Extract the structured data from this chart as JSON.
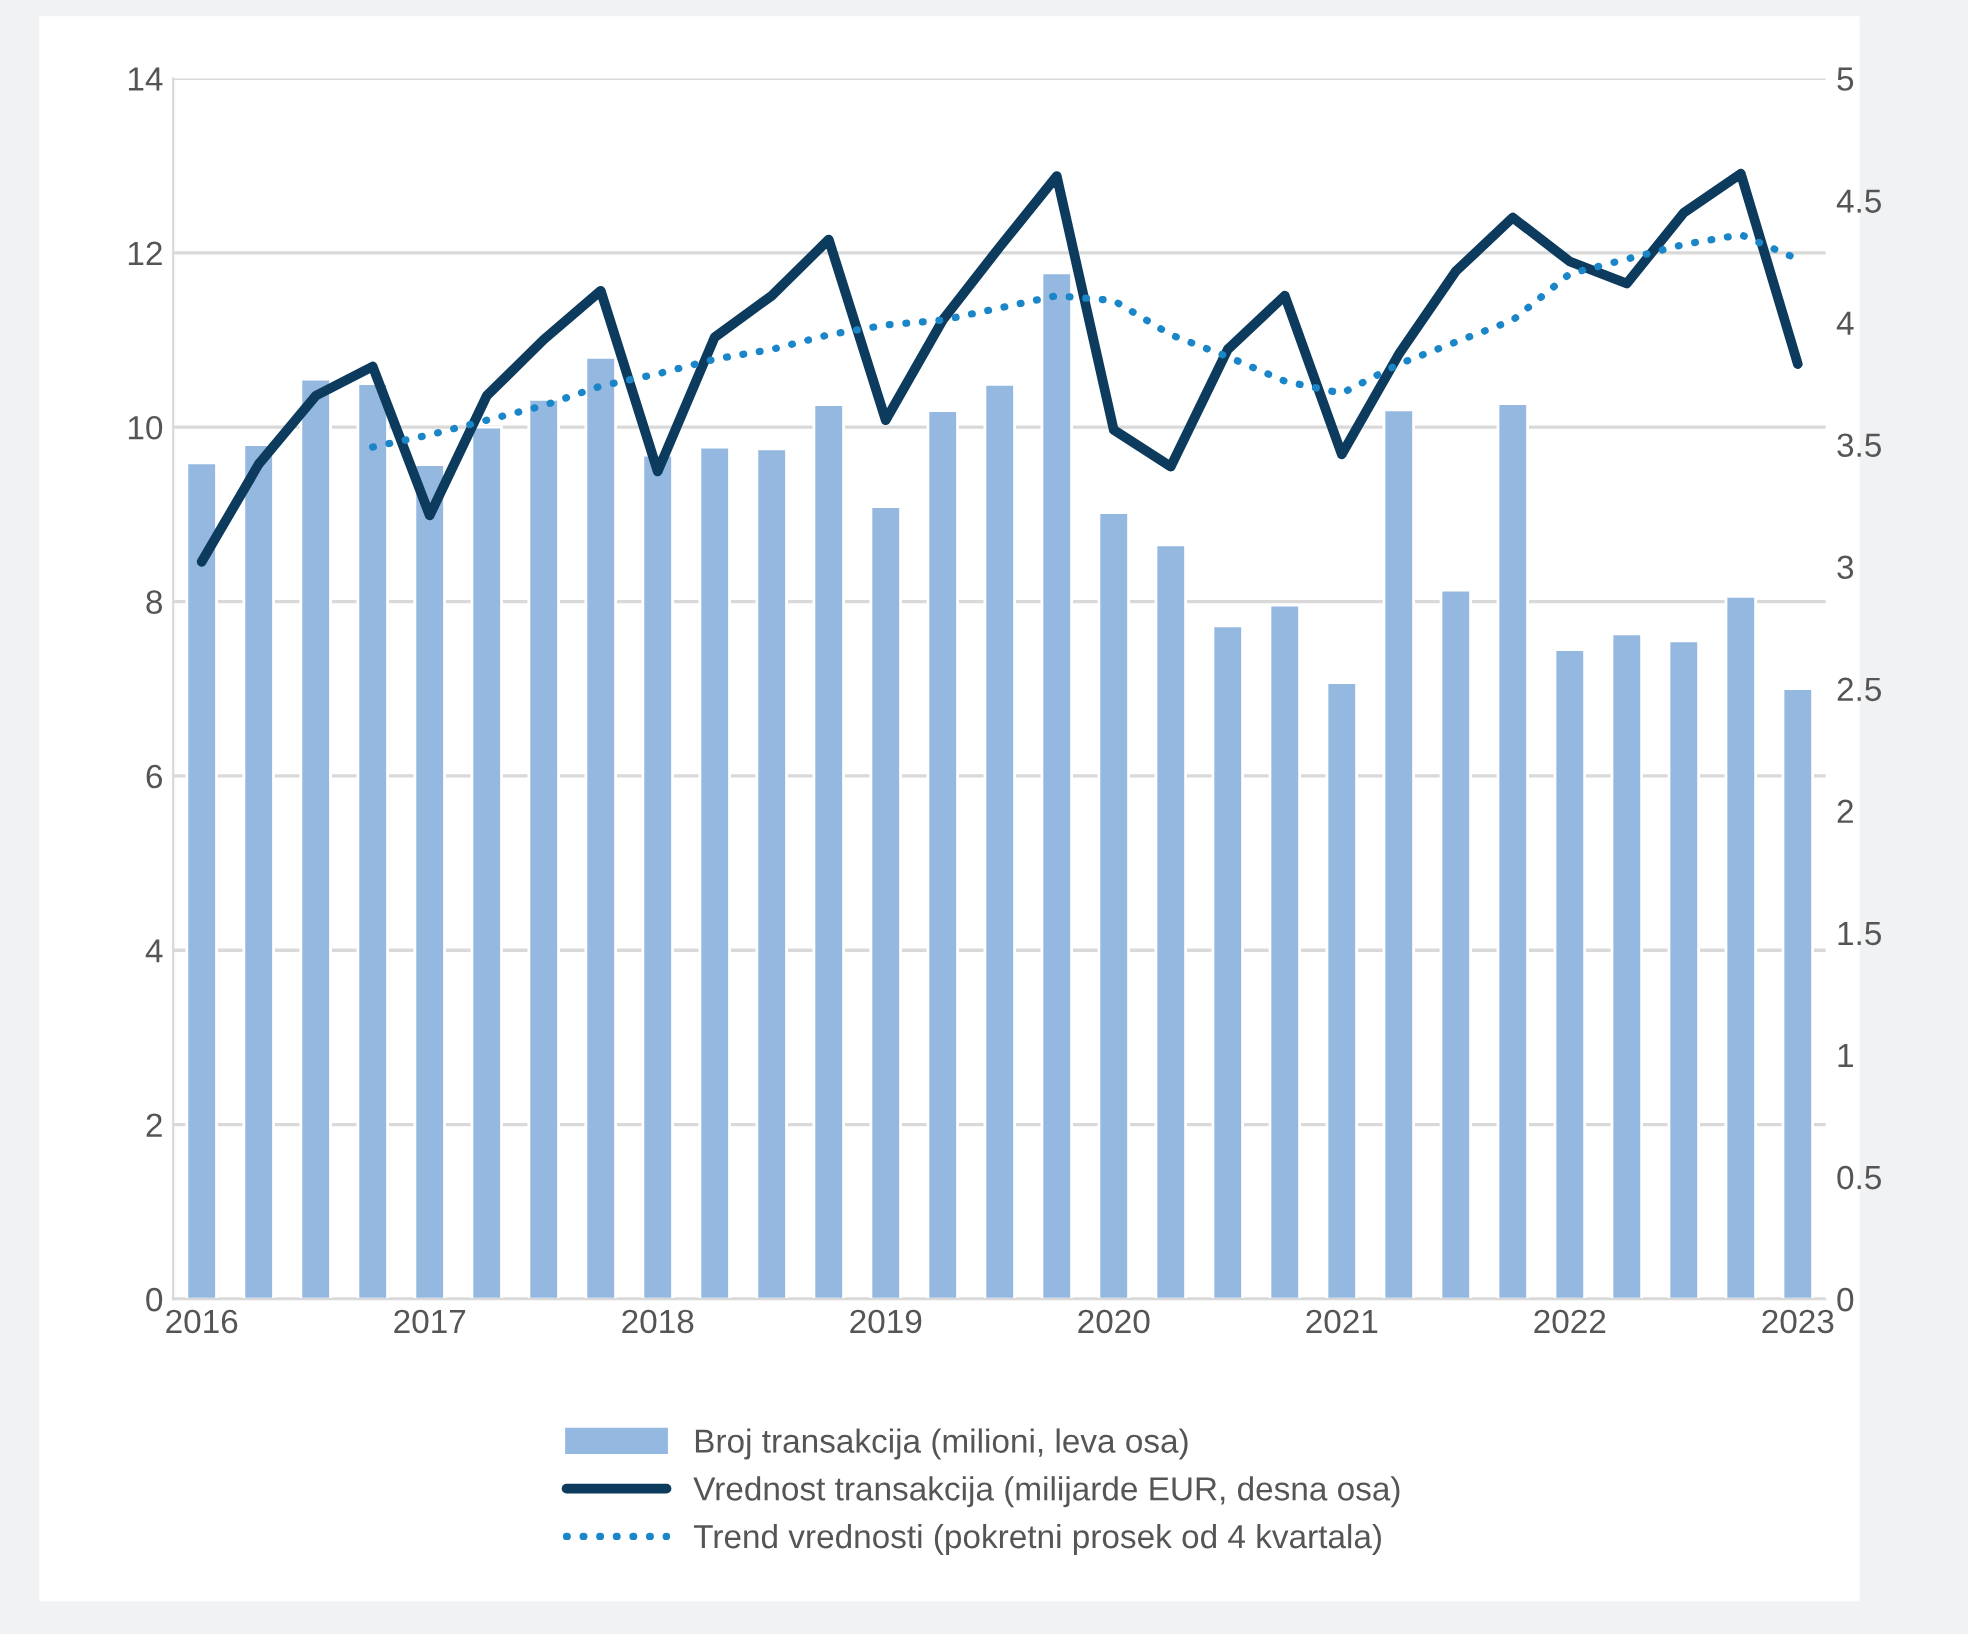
{
  "chart_data": {
    "type": "bar",
    "categories": [
      "2016",
      null,
      null,
      null,
      "2017",
      null,
      null,
      null,
      "2018",
      null,
      null,
      null,
      "2019",
      null,
      null,
      null,
      "2020",
      null,
      null,
      null,
      "2021",
      null,
      null,
      null,
      "2022",
      null,
      null,
      null,
      "2023"
    ],
    "series": [
      {
        "name": "Broj transakcija (milioni, leva osa)",
        "color": "#95b8e0",
        "values": [
          9.59,
          9.8,
          10.55,
          10.5,
          9.57,
          10.0,
          10.32,
          10.8,
          9.68,
          9.77,
          9.75,
          10.26,
          9.09,
          10.19,
          10.49,
          11.77,
          9.02,
          8.65,
          7.72,
          7.96,
          7.07,
          10.2,
          8.13,
          10.27,
          7.45,
          7.63,
          7.55,
          8.06,
          7.0
        ]
      },
      {
        "name": "Vrednost transakcija (milijarde EUR, desna osa)",
        "type": "line",
        "axis": "y2",
        "color": "#0d3b5e",
        "line_style": "solid",
        "values": [
          3.02,
          3.42,
          3.7,
          3.82,
          3.21,
          3.7,
          3.93,
          4.13,
          3.39,
          3.94,
          4.11,
          4.34,
          3.6,
          4.01,
          4.31,
          4.6,
          3.56,
          3.41,
          3.89,
          4.11,
          3.46,
          3.87,
          4.21,
          4.43,
          4.25,
          4.16,
          4.45,
          4.61,
          3.83
        ]
      },
      {
        "name": "Trend vrednosti (pokretni prosek od 4 kvartala)",
        "type": "line",
        "axis": "y2",
        "color": "#1a86c8",
        "line_style": "dotted",
        "values": [
          null,
          null,
          null,
          3.49,
          3.54,
          3.6,
          3.66,
          3.74,
          3.79,
          3.85,
          3.89,
          3.95,
          3.99,
          4.01,
          4.06,
          4.11,
          4.09,
          3.95,
          3.86,
          3.76,
          3.71,
          3.83,
          3.92,
          4.01,
          4.2,
          4.26,
          4.32,
          4.36,
          4.26
        ]
      }
    ],
    "ylim": [
      0,
      14
    ],
    "yticks": [
      0,
      2,
      4,
      6,
      8,
      10,
      12,
      14
    ],
    "y2lim": [
      0,
      5
    ],
    "y2ticks": [
      0,
      0.5,
      1,
      1.5,
      2,
      2.5,
      3,
      3.5,
      4,
      4.5,
      5
    ],
    "grid": "y",
    "legend": "bottom"
  }
}
